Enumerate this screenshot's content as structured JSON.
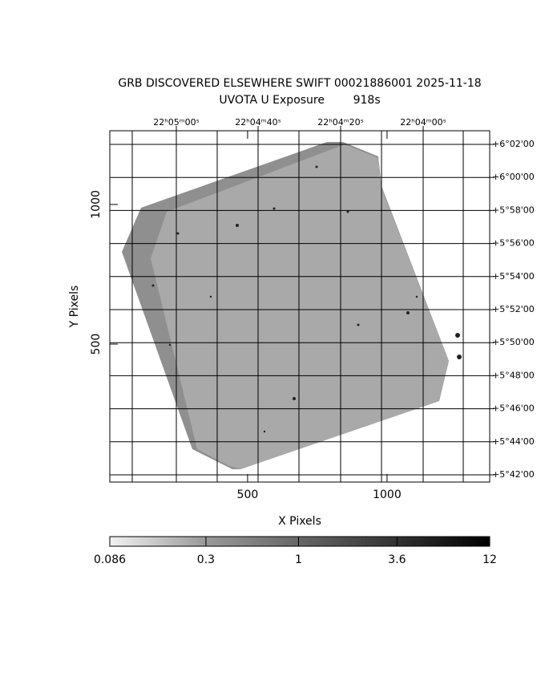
{
  "chart_data": {
    "type": "image",
    "title": "GRB DISCOVERED ELSEWHERE SWIFT 00021886001 2025-11-18",
    "subtitle": "UVOTA U Exposure        918s",
    "x_label": "X Pixels",
    "y_label": "Y Pixels",
    "xlim": [
      6,
      1368
    ],
    "ylim": [
      6,
      1264
    ],
    "xticks": [
      500,
      1000
    ],
    "yticks": [
      500,
      1000
    ],
    "ra_labels": [
      "22ʰ05ᵐ00ˢ",
      "22ʰ04ᵐ40ˢ",
      "22ʰ04ᵐ20ˢ",
      "22ʰ04ᵐ00ˢ"
    ],
    "dec_labels": [
      "+6°02'00",
      "+6°00'00",
      "+5°58'00",
      "+5°56'00",
      "+5°54'00",
      "+5°52'00",
      "+5°50'00",
      "+5°48'00",
      "+5°46'00",
      "+5°44'00",
      "+5°42'00"
    ],
    "colorbar": {
      "clim": [
        0.086,
        12
      ],
      "ticks": [
        0.086,
        0.3,
        1,
        3.6,
        12
      ],
      "log": true
    }
  }
}
